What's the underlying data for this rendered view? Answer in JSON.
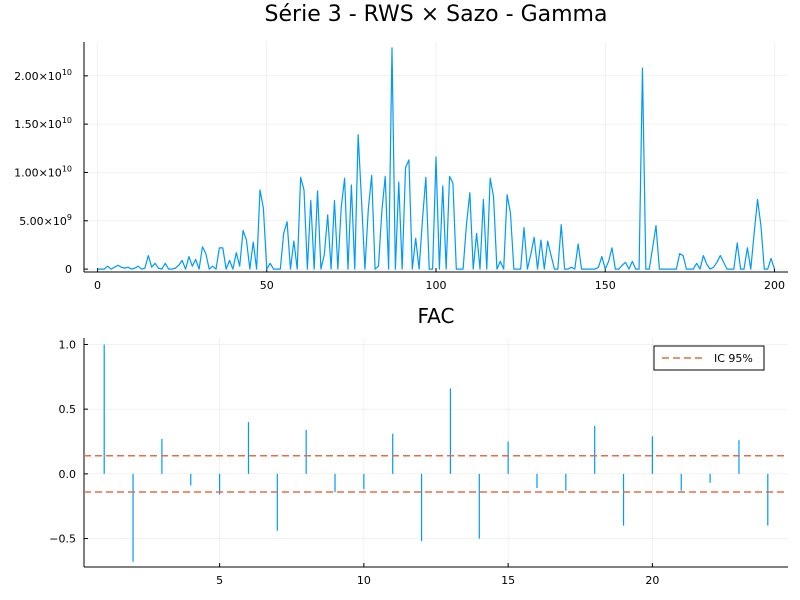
{
  "chart_data": [
    {
      "type": "line",
      "title": "Série 3 - RWS × Sazo - Gamma",
      "xlabel": "",
      "ylabel": "",
      "xlim": [
        -4,
        204
      ],
      "ylim": [
        -300000000.0,
        23500000000.0
      ],
      "grid": true,
      "color": "#009af9",
      "x_ticks": [
        0,
        50,
        100,
        150,
        200
      ],
      "x_tick_labels": [
        "0",
        "50",
        "100",
        "150",
        "200"
      ],
      "y_ticks": [
        {
          "value": 0,
          "mantissa": "0",
          "exponent": ""
        },
        {
          "value": 5000000000.0,
          "mantissa": "5.00×10",
          "exponent": "9"
        },
        {
          "value": 10000000000.0,
          "mantissa": "1.00×10",
          "exponent": "10"
        },
        {
          "value": 15000000000.0,
          "mantissa": "1.50×10",
          "exponent": "10"
        },
        {
          "value": 20000000000.0,
          "mantissa": "2.00×10",
          "exponent": "10"
        }
      ],
      "series": [
        {
          "values": [
            0,
            0,
            0,
            300000000.0,
            0,
            200000000.0,
            400000000.0,
            200000000.0,
            100000000.0,
            200000000.0,
            0,
            100000000.0,
            300000000.0,
            0,
            100000000.0,
            1400000000.0,
            200000000.0,
            600000000.0,
            100000000.0,
            0,
            600000000.0,
            0,
            0,
            100000000.0,
            400000000.0,
            900000000.0,
            0,
            1300000000.0,
            300000000.0,
            1000000000.0,
            0,
            2300000000.0,
            1600000000.0,
            0,
            300000000.0,
            0,
            2200000000.0,
            2200000000.0,
            0,
            900000000.0,
            0,
            1700000000.0,
            300000000.0,
            4000000000.0,
            3000000000.0,
            0,
            2800000000.0,
            0,
            8200000000.0,
            6300000000.0,
            0,
            600000000.0,
            0,
            0,
            0,
            3700000000.0,
            4900000000.0,
            0,
            2900000000.0,
            0,
            9500000000.0,
            8200000000.0,
            0,
            7100000000.0,
            0,
            8100000000.0,
            0,
            1500000000.0,
            5600000000.0,
            0,
            7100000000.0,
            0,
            6400000000.0,
            9400000000.0,
            0,
            8700000000.0,
            0,
            13900000000.0,
            7100000000.0,
            0,
            6200000000.0,
            9700000000.0,
            0,
            300000000.0,
            6000000000.0,
            9600000000.0,
            0,
            22900000000.0,
            0,
            9000000000.0,
            0,
            10500000000.0,
            11300000000.0,
            0,
            3200000000.0,
            0,
            5100000000.0,
            9500000000.0,
            0,
            0,
            11600000000.0,
            0,
            8600000000.0,
            0,
            9600000000.0,
            8900000000.0,
            0,
            0,
            0,
            4600000000.0,
            7900000000.0,
            0,
            3700000000.0,
            0,
            7200000000.0,
            0,
            9400000000.0,
            7500000000.0,
            0,
            800000000.0,
            0,
            7700000000.0,
            5800000000.0,
            0,
            0,
            0,
            4300000000.0,
            0,
            1500000000.0,
            3300000000.0,
            0,
            3000000000.0,
            0,
            2900000000.0,
            1400000000.0,
            0,
            0,
            4600000000.0,
            0,
            0,
            200000000.0,
            0,
            2600000000.0,
            0,
            0,
            0,
            0,
            0,
            200000000.0,
            1300000000.0,
            0,
            800000000.0,
            2200000000.0,
            0,
            0,
            400000000.0,
            700000000.0,
            0,
            800000000.0,
            0,
            0,
            20800000000.0,
            0,
            0,
            2200000000.0,
            4500000000.0,
            0,
            0,
            0,
            0,
            0,
            0,
            1600000000.0,
            1400000000.0,
            0,
            0,
            0,
            600000000.0,
            0,
            1400000000.0,
            500000000.0,
            0,
            200000000.0,
            700000000.0,
            1400000000.0,
            700000000.0,
            0,
            0,
            0,
            2700000000.0,
            0,
            0,
            2200000000.0,
            0,
            3700000000.0,
            7200000000.0,
            4500000000.0,
            0,
            0,
            1100000000.0,
            0
          ]
        }
      ]
    },
    {
      "type": "bar",
      "title": "FAC",
      "xlabel": "",
      "ylabel": "",
      "xlim": [
        0.3,
        24.7
      ],
      "ylim": [
        -0.72,
        1.05
      ],
      "grid": true,
      "color": "#009af9",
      "x_ticks": [
        5,
        10,
        15,
        20
      ],
      "y_ticks": [
        1.0,
        0.5,
        0.0,
        -0.5
      ],
      "y_tick_labels": [
        "1.0",
        "0.5",
        "0.0",
        "−0.5"
      ],
      "lags": [
        1,
        2,
        3,
        4,
        5,
        6,
        7,
        8,
        9,
        10,
        11,
        12,
        13,
        14,
        15,
        16,
        17,
        18,
        19,
        20,
        21,
        22,
        23,
        24
      ],
      "values": [
        1.0,
        -0.68,
        0.27,
        -0.09,
        -0.16,
        0.4,
        -0.44,
        0.34,
        -0.14,
        -0.12,
        0.31,
        -0.52,
        0.66,
        -0.5,
        0.25,
        -0.11,
        -0.13,
        0.37,
        -0.4,
        0.29,
        -0.13,
        -0.07,
        0.26,
        -0.4
      ],
      "confidence_band": 0.14,
      "band_color": "#e26f46",
      "legend": {
        "label": "IC 95%",
        "placement": "top-right"
      }
    }
  ]
}
